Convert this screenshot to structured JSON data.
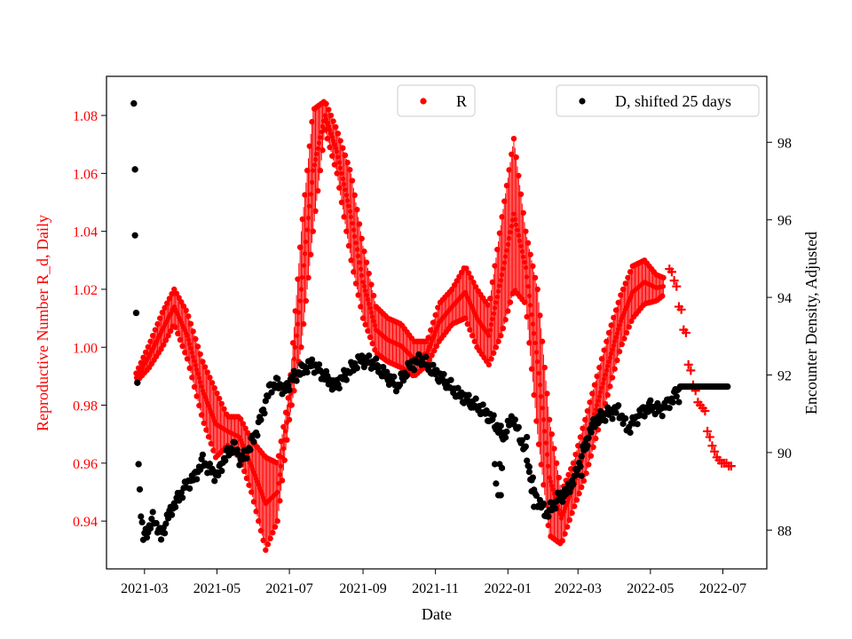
{
  "chart_data": {
    "type": "scatter",
    "xlabel": "Date",
    "ylabel_left": "Reproductive Number R_d, Daily",
    "ylabel_right": "Encounter Density, Adjusted",
    "xlim": [
      "2021-01-28",
      "2022-08-07"
    ],
    "ylim_left": [
      0.9235,
      1.0935
    ],
    "ylim_right": [
      87.0,
      99.7
    ],
    "x_ticks": [
      "2021-03-01",
      "2021-05-01",
      "2021-07-01",
      "2021-09-01",
      "2021-11-01",
      "2022-01-01",
      "2022-03-01",
      "2022-05-01",
      "2022-07-01"
    ],
    "x_tick_labels": [
      "2021-03",
      "2021-05",
      "2021-07",
      "2021-09",
      "2021-11",
      "2022-01",
      "2022-03",
      "2022-05",
      "2022-07"
    ],
    "left_ticks": [
      0.94,
      0.96,
      0.98,
      1.0,
      1.02,
      1.04,
      1.06,
      1.08
    ],
    "left_tick_labels": [
      "0.94",
      "0.96",
      "0.98",
      "1.00",
      "1.02",
      "1.04",
      "1.06",
      "1.08"
    ],
    "right_ticks": [
      88,
      90,
      92,
      94,
      96,
      98
    ],
    "right_tick_labels": [
      "88",
      "90",
      "92",
      "94",
      "96",
      "98"
    ],
    "grid": false,
    "colors": {
      "R": "#ff0000",
      "D": "#000000",
      "left_axis": "#ff0000",
      "right_axis": "#000000"
    },
    "legend_R": {
      "label": "R",
      "placement": "top-center"
    },
    "legend_D": {
      "label": "D, shifted 25 days",
      "placement": "top-right"
    },
    "series": [
      {
        "name": "R",
        "axis": "left",
        "marker": "dot with daily vertical oscillation band",
        "daily_range": [
          {
            "x": "2021-02-22",
            "lo": 0.988,
            "hi": 0.991
          },
          {
            "x": "2021-03-05",
            "lo": 0.993,
            "hi": 1.001
          },
          {
            "x": "2021-03-16",
            "lo": 1.0,
            "hi": 1.012
          },
          {
            "x": "2021-03-26",
            "lo": 1.008,
            "hi": 1.02
          },
          {
            "x": "2021-04-06",
            "lo": 0.996,
            "hi": 1.012
          },
          {
            "x": "2021-04-19",
            "lo": 0.975,
            "hi": 0.995
          },
          {
            "x": "2021-04-30",
            "lo": 0.962,
            "hi": 0.985
          },
          {
            "x": "2021-05-10",
            "lo": 0.966,
            "hi": 0.976
          },
          {
            "x": "2021-05-20",
            "lo": 0.962,
            "hi": 0.976
          },
          {
            "x": "2021-05-30",
            "lo": 0.95,
            "hi": 0.968
          },
          {
            "x": "2021-06-11",
            "lo": 0.93,
            "hi": 0.962
          },
          {
            "x": "2021-06-21",
            "lo": 0.94,
            "hi": 0.96
          },
          {
            "x": "2021-07-01",
            "lo": 0.975,
            "hi": 0.985
          },
          {
            "x": "2021-07-11",
            "lo": 1.0,
            "hi": 1.04
          },
          {
            "x": "2021-07-21",
            "lo": 1.04,
            "hi": 1.082
          },
          {
            "x": "2021-07-31",
            "lo": 1.075,
            "hi": 1.085
          },
          {
            "x": "2021-08-10",
            "lo": 1.06,
            "hi": 1.075
          },
          {
            "x": "2021-08-22",
            "lo": 1.03,
            "hi": 1.06
          },
          {
            "x": "2021-09-01",
            "lo": 1.01,
            "hi": 1.035
          },
          {
            "x": "2021-09-12",
            "lo": 0.998,
            "hi": 1.014
          },
          {
            "x": "2021-09-22",
            "lo": 0.995,
            "hi": 1.01
          },
          {
            "x": "2021-10-03",
            "lo": 0.993,
            "hi": 1.008
          },
          {
            "x": "2021-10-14",
            "lo": 0.99,
            "hi": 1.002
          },
          {
            "x": "2021-10-25",
            "lo": 0.994,
            "hi": 1.002
          },
          {
            "x": "2021-11-04",
            "lo": 1.002,
            "hi": 1.015
          },
          {
            "x": "2021-11-15",
            "lo": 1.008,
            "hi": 1.02
          },
          {
            "x": "2021-11-26",
            "lo": 1.01,
            "hi": 1.028
          },
          {
            "x": "2021-12-06",
            "lo": 1.0,
            "hi": 1.02
          },
          {
            "x": "2021-12-16",
            "lo": 0.994,
            "hi": 1.014
          },
          {
            "x": "2021-12-27",
            "lo": 1.005,
            "hi": 1.045
          },
          {
            "x": "2022-01-06",
            "lo": 1.02,
            "hi": 1.072
          },
          {
            "x": "2022-01-16",
            "lo": 1.015,
            "hi": 1.04
          },
          {
            "x": "2022-01-26",
            "lo": 0.97,
            "hi": 1.02
          },
          {
            "x": "2022-02-05",
            "lo": 0.935,
            "hi": 0.975
          },
          {
            "x": "2022-02-15",
            "lo": 0.932,
            "hi": 0.95
          },
          {
            "x": "2022-02-25",
            "lo": 0.944,
            "hi": 0.96
          },
          {
            "x": "2022-03-07",
            "lo": 0.955,
            "hi": 0.975
          },
          {
            "x": "2022-03-17",
            "lo": 0.97,
            "hi": 0.99
          },
          {
            "x": "2022-03-27",
            "lo": 0.985,
            "hi": 1.005
          },
          {
            "x": "2022-04-06",
            "lo": 1.0,
            "hi": 1.018
          },
          {
            "x": "2022-04-16",
            "lo": 1.01,
            "hi": 1.028
          },
          {
            "x": "2022-04-26",
            "lo": 1.015,
            "hi": 1.03
          },
          {
            "x": "2022-05-06",
            "lo": 1.016,
            "hi": 1.025
          },
          {
            "x": "2022-05-12",
            "lo": 1.018,
            "hi": 1.024
          }
        ]
      },
      {
        "name": "R (forecast)",
        "axis": "left",
        "marker": "plus",
        "x": [
          "2022-05-17",
          "2022-05-19",
          "2022-05-21",
          "2022-05-23",
          "2022-05-25",
          "2022-05-27",
          "2022-05-29",
          "2022-05-31",
          "2022-06-02",
          "2022-06-04",
          "2022-06-06",
          "2022-06-08",
          "2022-06-10",
          "2022-06-12",
          "2022-06-14",
          "2022-06-16",
          "2022-06-18",
          "2022-06-20",
          "2022-06-22",
          "2022-06-24",
          "2022-06-26",
          "2022-06-28",
          "2022-06-30",
          "2022-07-02",
          "2022-07-04",
          "2022-07-06",
          "2022-07-08"
        ],
        "y": [
          1.027,
          1.026,
          1.023,
          1.021,
          1.014,
          1.013,
          1.006,
          1.005,
          0.994,
          0.992,
          0.987,
          0.985,
          0.981,
          0.98,
          0.979,
          0.978,
          0.971,
          0.969,
          0.966,
          0.964,
          0.962,
          0.961,
          0.96,
          0.96,
          0.96,
          0.959,
          0.959
        ]
      },
      {
        "name": "D",
        "axis": "right",
        "marker": "dot",
        "anchors": [
          {
            "x": "2021-02-20",
            "y": 99.0
          },
          {
            "x": "2021-02-21",
            "y": 97.3
          },
          {
            "x": "2021-02-21",
            "y": 95.6
          },
          {
            "x": "2021-02-22",
            "y": 93.6
          },
          {
            "x": "2021-02-23",
            "y": 91.8
          },
          {
            "x": "2021-02-24",
            "y": 89.7
          },
          {
            "x": "2021-02-26",
            "y": 88.4
          },
          {
            "x": "2021-02-28",
            "y": 87.8
          },
          {
            "x": "2021-03-04",
            "y": 88.0
          },
          {
            "x": "2021-03-08",
            "y": 88.3
          },
          {
            "x": "2021-03-12",
            "y": 88.1
          },
          {
            "x": "2021-03-15",
            "y": 87.8
          },
          {
            "x": "2021-03-20",
            "y": 88.3
          },
          {
            "x": "2021-03-25",
            "y": 88.6
          },
          {
            "x": "2021-03-31",
            "y": 88.9
          },
          {
            "x": "2021-04-06",
            "y": 89.2
          },
          {
            "x": "2021-04-13",
            "y": 89.4
          },
          {
            "x": "2021-04-19",
            "y": 89.8
          },
          {
            "x": "2021-04-24",
            "y": 89.6
          },
          {
            "x": "2021-05-01",
            "y": 89.4
          },
          {
            "x": "2021-05-08",
            "y": 89.9
          },
          {
            "x": "2021-05-15",
            "y": 90.2
          },
          {
            "x": "2021-05-21",
            "y": 89.8
          },
          {
            "x": "2021-05-28",
            "y": 90.1
          },
          {
            "x": "2021-06-04",
            "y": 90.6
          },
          {
            "x": "2021-06-10",
            "y": 91.2
          },
          {
            "x": "2021-06-15",
            "y": 91.7
          },
          {
            "x": "2021-06-21",
            "y": 91.8
          },
          {
            "x": "2021-06-27",
            "y": 91.6
          },
          {
            "x": "2021-07-03",
            "y": 91.9
          },
          {
            "x": "2021-07-10",
            "y": 92.1
          },
          {
            "x": "2021-07-20",
            "y": 92.3
          },
          {
            "x": "2021-07-30",
            "y": 92.0
          },
          {
            "x": "2021-08-08",
            "y": 91.7
          },
          {
            "x": "2021-08-20",
            "y": 92.1
          },
          {
            "x": "2021-08-30",
            "y": 92.4
          },
          {
            "x": "2021-09-10",
            "y": 92.3
          },
          {
            "x": "2021-09-20",
            "y": 92.0
          },
          {
            "x": "2021-09-30",
            "y": 91.7
          },
          {
            "x": "2021-10-10",
            "y": 92.2
          },
          {
            "x": "2021-10-20",
            "y": 92.4
          },
          {
            "x": "2021-10-30",
            "y": 92.1
          },
          {
            "x": "2021-11-10",
            "y": 91.8
          },
          {
            "x": "2021-11-20",
            "y": 91.5
          },
          {
            "x": "2021-11-30",
            "y": 91.3
          },
          {
            "x": "2021-12-10",
            "y": 91.1
          },
          {
            "x": "2021-12-20",
            "y": 90.8
          },
          {
            "x": "2021-12-28",
            "y": 90.4
          },
          {
            "x": "2022-01-05",
            "y": 90.9
          },
          {
            "x": "2022-01-15",
            "y": 90.1
          },
          {
            "x": "2022-01-25",
            "y": 88.8
          },
          {
            "x": "2022-02-03",
            "y": 88.4
          },
          {
            "x": "2022-02-12",
            "y": 88.8
          },
          {
            "x": "2022-02-20",
            "y": 89.0
          },
          {
            "x": "2022-02-27",
            "y": 89.4
          },
          {
            "x": "2022-03-07",
            "y": 90.2
          },
          {
            "x": "2022-03-15",
            "y": 90.8
          },
          {
            "x": "2022-03-25",
            "y": 91.0
          },
          {
            "x": "2022-04-04",
            "y": 91.1
          },
          {
            "x": "2022-04-12",
            "y": 90.6
          },
          {
            "x": "2022-04-22",
            "y": 91.0
          },
          {
            "x": "2022-05-01",
            "y": 91.2
          },
          {
            "x": "2022-05-10",
            "y": 91.1
          },
          {
            "x": "2022-05-20",
            "y": 91.4
          },
          {
            "x": "2022-05-26",
            "y": 91.7
          },
          {
            "x": "2022-07-05",
            "y": 91.7
          }
        ],
        "outliers": [
          {
            "x": "2021-12-21",
            "y": 89.7
          },
          {
            "x": "2021-12-25",
            "y": 89.7
          },
          {
            "x": "2021-12-27",
            "y": 89.6
          },
          {
            "x": "2021-12-22",
            "y": 89.2
          },
          {
            "x": "2021-12-24",
            "y": 88.9
          },
          {
            "x": "2021-12-26",
            "y": 88.9
          },
          {
            "x": "2022-01-17",
            "y": 90.4
          },
          {
            "x": "2022-01-19",
            "y": 89.5
          },
          {
            "x": "2022-01-21",
            "y": 89.0
          },
          {
            "x": "2022-01-23",
            "y": 88.6
          },
          {
            "x": "2022-03-04",
            "y": 89.4
          },
          {
            "x": "2022-03-08",
            "y": 90.1
          },
          {
            "x": "2022-05-25",
            "y": 91.3
          }
        ]
      }
    ]
  }
}
